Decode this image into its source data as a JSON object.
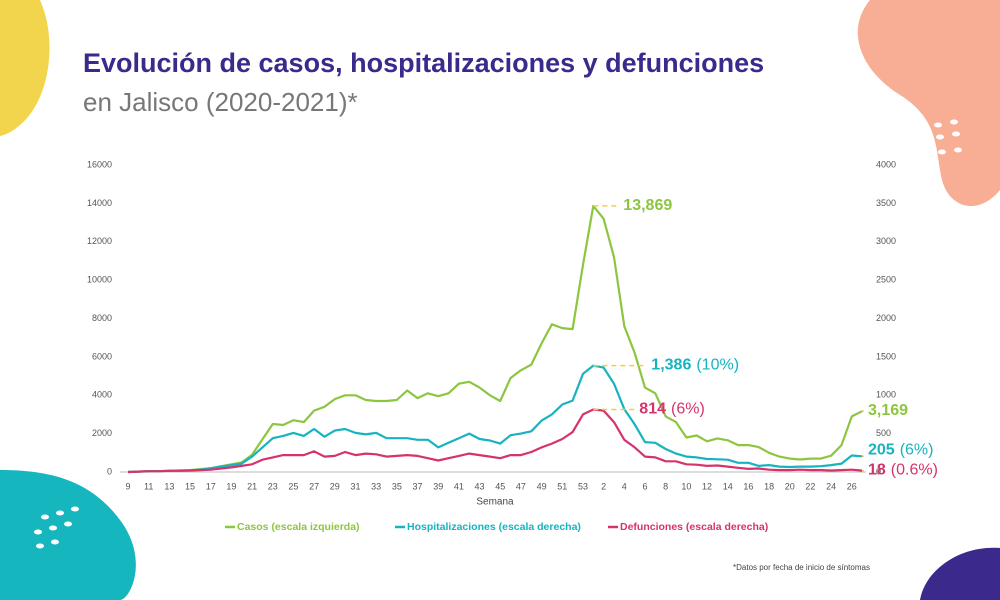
{
  "chart_data": {
    "type": "line",
    "title": "Evolución de casos, hospitalizaciones y defunciones",
    "subtitle": "en Jalisco (2020-2021)*",
    "x_label": "Semana",
    "footnote": "*Datos por fecha de inicio de síntomas",
    "categories": [
      "9",
      null,
      "11",
      null,
      "13",
      null,
      "15",
      null,
      "17",
      null,
      "19",
      null,
      "21",
      null,
      "23",
      null,
      "25",
      null,
      "27",
      null,
      "29",
      null,
      "31",
      null,
      "33",
      null,
      "35",
      null,
      "37",
      null,
      "39",
      null,
      "41",
      null,
      "43",
      null,
      "45",
      null,
      "47",
      null,
      "49",
      null,
      "51",
      null,
      "53",
      null,
      "2",
      null,
      "4",
      null,
      "6",
      null,
      "8",
      null,
      "10",
      null,
      "12",
      null,
      "14",
      null,
      "16",
      null,
      "18",
      null,
      "20",
      null,
      "22",
      null,
      "24",
      null,
      "26",
      null
    ],
    "ylim": [
      0,
      16000
    ],
    "yticks": [
      0,
      2000,
      4000,
      6000,
      8000,
      10000,
      12000,
      14000,
      16000
    ],
    "y2lim": [
      0,
      4000
    ],
    "y2ticks": [
      0,
      500,
      1000,
      1500,
      2000,
      2500,
      3000,
      3500,
      4000
    ],
    "grid": false,
    "legend": "bottom",
    "series": [
      {
        "name": "Casos (escala izquierda)",
        "color": "#8cc63f",
        "values": [
          0,
          20,
          30,
          40,
          60,
          80,
          100,
          150,
          200,
          300,
          400,
          500,
          900,
          1700,
          2500,
          2450,
          2700,
          2600,
          3200,
          3400,
          3800,
          4000,
          4000,
          3750,
          3700,
          3700,
          3750,
          4250,
          3850,
          4100,
          3950,
          4100,
          4600,
          4700,
          4400,
          4000,
          3700,
          4900,
          5300,
          5600,
          6700,
          7700,
          7500,
          7450,
          10800,
          13869,
          13200,
          11200,
          7600,
          6200,
          4400,
          4100,
          2900,
          2600,
          1800,
          1900,
          1600,
          1750,
          1650,
          1400,
          1400,
          1300,
          1000,
          800,
          700,
          650,
          700,
          700,
          850,
          1400,
          2900,
          3169
        ],
        "value_labels": [
          null,
          null,
          null,
          null,
          null,
          null,
          null,
          null,
          null,
          null,
          null,
          null,
          null,
          null,
          null,
          null,
          null,
          null,
          null,
          null,
          null,
          null,
          null,
          null,
          null,
          null,
          null,
          null,
          null,
          null,
          null,
          null,
          null,
          null,
          null,
          null,
          null,
          null,
          null,
          null,
          null,
          null,
          null,
          null,
          null,
          "13,869",
          null,
          null,
          null,
          null,
          null,
          null,
          null,
          null,
          null,
          null,
          null,
          null,
          null,
          null,
          null,
          null,
          null,
          null,
          null,
          null,
          null,
          null,
          null,
          null,
          null,
          "3,169"
        ]
      },
      {
        "name": "Hospitalizaciones (escala derecha)",
        "color": "#17b3c1",
        "axis": "y2",
        "values": [
          0,
          5,
          10,
          10,
          15,
          20,
          20,
          30,
          50,
          70,
          90,
          110,
          200,
          320,
          440,
          470,
          510,
          470,
          560,
          460,
          540,
          560,
          510,
          490,
          510,
          440,
          440,
          440,
          420,
          420,
          320,
          380,
          440,
          500,
          430,
          410,
          370,
          480,
          500,
          530,
          670,
          750,
          880,
          930,
          1280,
          1386,
          1360,
          1150,
          820,
          620,
          390,
          380,
          300,
          240,
          200,
          190,
          170,
          165,
          160,
          120,
          120,
          80,
          90,
          70,
          65,
          70,
          70,
          75,
          90,
          110,
          215,
          205
        ],
        "value_labels": [
          null,
          null,
          null,
          null,
          null,
          null,
          null,
          null,
          null,
          null,
          null,
          null,
          null,
          null,
          null,
          null,
          null,
          null,
          null,
          null,
          null,
          null,
          null,
          null,
          null,
          null,
          null,
          null,
          null,
          null,
          null,
          null,
          null,
          null,
          null,
          null,
          null,
          null,
          null,
          null,
          null,
          null,
          null,
          null,
          null,
          "1,386",
          null,
          null,
          null,
          null,
          null,
          null,
          null,
          null,
          null,
          null,
          null,
          null,
          null,
          null,
          null,
          null,
          null,
          null,
          null,
          null,
          null,
          null,
          null,
          null,
          null,
          "205"
        ],
        "value_label_notes": [
          null,
          null,
          null,
          null,
          null,
          null,
          null,
          null,
          null,
          null,
          null,
          null,
          null,
          null,
          null,
          null,
          null,
          null,
          null,
          null,
          null,
          null,
          null,
          null,
          null,
          null,
          null,
          null,
          null,
          null,
          null,
          null,
          null,
          null,
          null,
          null,
          null,
          null,
          null,
          null,
          null,
          null,
          null,
          null,
          null,
          "(10%)",
          null,
          null,
          null,
          null,
          null,
          null,
          null,
          null,
          null,
          null,
          null,
          null,
          null,
          null,
          null,
          null,
          null,
          null,
          null,
          null,
          null,
          null,
          null,
          null,
          null,
          "(6%)"
        ]
      },
      {
        "name": "Defunciones (escala derecha)",
        "color": "#d6336c",
        "axis": "y2",
        "values": [
          0,
          5,
          10,
          10,
          15,
          15,
          20,
          25,
          30,
          45,
          60,
          80,
          100,
          160,
          190,
          220,
          220,
          220,
          270,
          200,
          210,
          260,
          220,
          240,
          230,
          200,
          210,
          220,
          210,
          180,
          150,
          180,
          210,
          240,
          220,
          200,
          180,
          220,
          220,
          260,
          320,
          370,
          430,
          520,
          750,
          814,
          800,
          650,
          420,
          320,
          200,
          190,
          140,
          140,
          100,
          95,
          80,
          85,
          70,
          55,
          40,
          45,
          30,
          25,
          25,
          30,
          25,
          25,
          20,
          25,
          30,
          18
        ],
        "value_labels": [
          null,
          null,
          null,
          null,
          null,
          null,
          null,
          null,
          null,
          null,
          null,
          null,
          null,
          null,
          null,
          null,
          null,
          null,
          null,
          null,
          null,
          null,
          null,
          null,
          null,
          null,
          null,
          null,
          null,
          null,
          null,
          null,
          null,
          null,
          null,
          null,
          null,
          null,
          null,
          null,
          null,
          null,
          null,
          null,
          null,
          "814",
          null,
          null,
          null,
          null,
          null,
          null,
          null,
          null,
          null,
          null,
          null,
          null,
          null,
          null,
          null,
          null,
          null,
          null,
          null,
          null,
          null,
          null,
          null,
          null,
          null,
          "18"
        ],
        "value_label_notes": [
          null,
          null,
          null,
          null,
          null,
          null,
          null,
          null,
          null,
          null,
          null,
          null,
          null,
          null,
          null,
          null,
          null,
          null,
          null,
          null,
          null,
          null,
          null,
          null,
          null,
          null,
          null,
          null,
          null,
          null,
          null,
          null,
          null,
          null,
          null,
          null,
          null,
          null,
          null,
          null,
          null,
          null,
          null,
          null,
          null,
          "(6%)",
          null,
          null,
          null,
          null,
          null,
          null,
          null,
          null,
          null,
          null,
          null,
          null,
          null,
          null,
          null,
          null,
          null,
          null,
          null,
          null,
          null,
          null,
          null,
          null,
          null,
          "(0.6%)"
        ]
      }
    ]
  }
}
